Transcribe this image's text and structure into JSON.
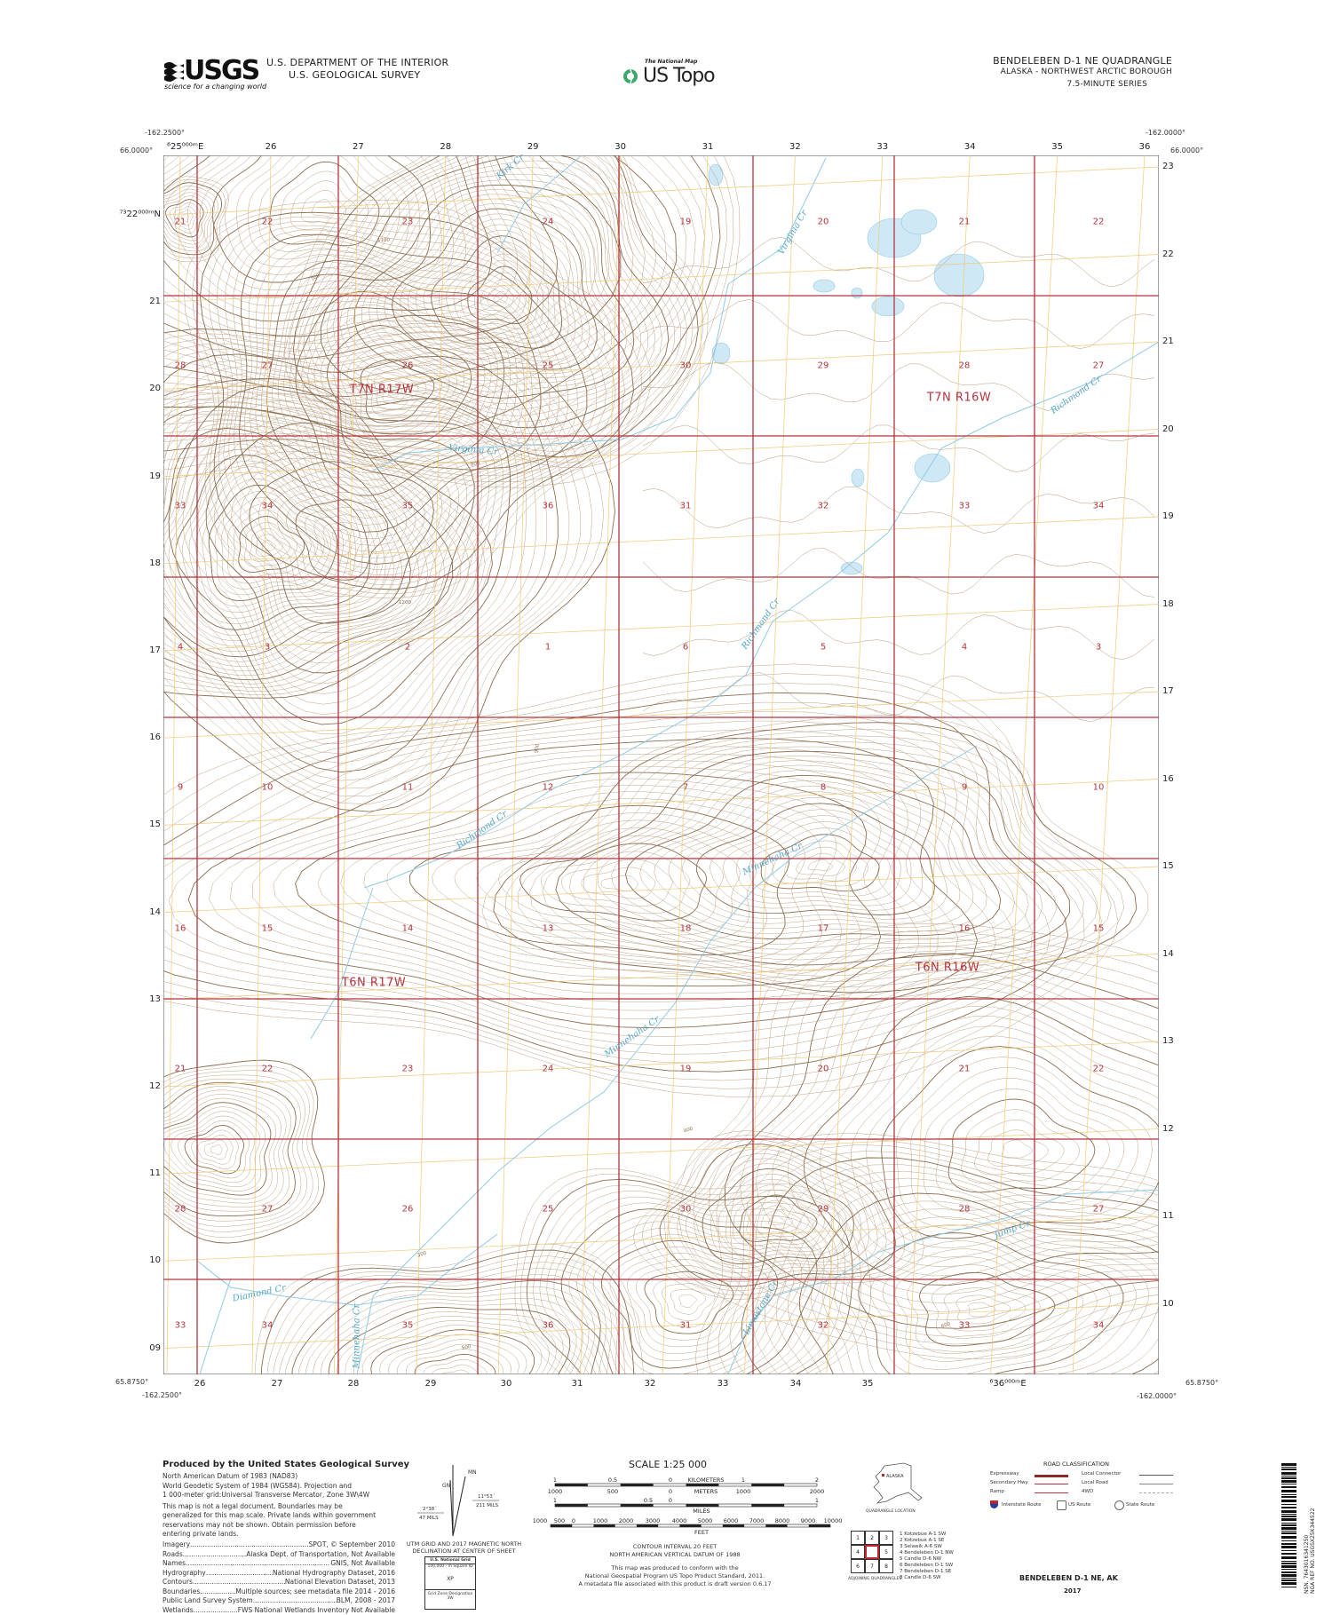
{
  "header": {
    "usgs_logo": "USGS",
    "usgs_tagline": "science for a changing world",
    "agency_line1": "U.S. DEPARTMENT OF THE INTERIOR",
    "agency_line2": "U.S. GEOLOGICAL SURVEY",
    "national_map": "The National Map",
    "us_topo": "US Topo",
    "quad_title": "BENDELEBEN D-1 NE QUADRANGLE",
    "state_line": "ALASKA - NORTHWEST ARCTIC BOROUGH",
    "series": "7.5-MINUTE SERIES"
  },
  "corners": {
    "nw_lon": "-162.2500°",
    "nw_lat": "66.0000°",
    "ne_lon": "-162.0000°",
    "ne_lat": "66.0000°",
    "sw_lon": "-162.2500°",
    "sw_lat": "65.8750°",
    "se_lon": "-162.0000°",
    "se_lat": "65.8750°"
  },
  "grid": {
    "easting_top": [
      "⁶25⁰⁰⁰ᵐE",
      "26",
      "27",
      "28",
      "29",
      "30",
      "31",
      "32",
      "33",
      "34",
      "35",
      "36"
    ],
    "easting_bottom": [
      "26",
      "27",
      "28",
      "29",
      "30",
      "31",
      "32",
      "33",
      "34",
      "35",
      "⁶36⁰⁰⁰ᵐE"
    ],
    "northing_left": [
      "⁷³22⁰⁰⁰ᵐN",
      "21",
      "20",
      "19",
      "18",
      "17",
      "16",
      "15",
      "14",
      "13",
      "12",
      "11",
      "10",
      "09"
    ],
    "northing_right": [
      "23",
      "22",
      "21",
      "20",
      "19",
      "18",
      "17",
      "16",
      "15",
      "14",
      "13",
      "12",
      "11",
      "10"
    ],
    "northing_bottom_inner": "⁷³09⁰⁰⁰ᵐN"
  },
  "sections": [
    [
      "21",
      "22",
      "23",
      "24",
      "19",
      "20",
      "21",
      "22"
    ],
    [
      "28",
      "27",
      "26",
      "25",
      "30",
      "29",
      "28",
      "27"
    ],
    [
      "33",
      "34",
      "35",
      "36",
      "31",
      "32",
      "33",
      "34"
    ],
    [
      "4",
      "3",
      "2",
      "1",
      "6",
      "5",
      "4",
      "3"
    ],
    [
      "9",
      "10",
      "11",
      "12",
      "7",
      "8",
      "9",
      "10"
    ],
    [
      "16",
      "15",
      "14",
      "13",
      "18",
      "17",
      "16",
      "15"
    ],
    [
      "21",
      "22",
      "23",
      "24",
      "19",
      "20",
      "21",
      "22"
    ],
    [
      "28",
      "27",
      "26",
      "25",
      "30",
      "29",
      "28",
      "27"
    ],
    [
      "33",
      "34",
      "35",
      "36",
      "31",
      "32",
      "33",
      "34"
    ]
  ],
  "townships": [
    "T7N R17W",
    "T7N R16W",
    "T6N R17W",
    "T6N R16W"
  ],
  "creeks": [
    "Kirk Cr",
    "Virginia Cr",
    "Virginia Cr",
    "Richmond Cr",
    "Richmond Cr",
    "Richmond Cr",
    "Minnehaha Cr",
    "Minnehaha Cr",
    "Minnehaha Cr",
    "Diamond Cr",
    "Limestone Cr",
    "Jump Cr"
  ],
  "contour_labels": [
    "1100",
    "1200",
    "700",
    "800",
    "900",
    "400",
    "500",
    "600",
    "300"
  ],
  "colors": {
    "section_line": "#b5343e",
    "utm_grid": "#f0c878",
    "contour": "#b89a7a",
    "index_contour": "#8d6e50",
    "water": "#8fcbe6",
    "lake": "#cfe8f5"
  },
  "footer": {
    "produced_by": "Produced by the United States Geological Survey",
    "datum_lines": [
      "North American Datum of 1983 (NAD83)",
      "World Geodetic System of 1984 (WGS84).  Projection and",
      "1 000-meter grid:Universal Transverse Mercator, Zone 3W\\4W"
    ],
    "disclaimer": [
      "This map is not a legal document. Boundaries may be",
      "generalized for this map scale. Private lands within government",
      "reservations may not be shown. Obtain permission before",
      "entering private lands."
    ],
    "credits": [
      {
        "item": "Imagery",
        "source": "SPOT, © September 2010"
      },
      {
        "item": "Roads",
        "source": "Alaska Dept. of Transportation, Not Available"
      },
      {
        "item": "Names",
        "source": "GNIS, Not Available"
      },
      {
        "item": "Hydrography",
        "source": "National Hydrography Dataset, 2016"
      },
      {
        "item": "Contours",
        "source": "National Elevation Dataset, 2013"
      },
      {
        "item": "Boundaries",
        "source": "Multiple sources; see metadata file 2014 - 2016"
      },
      {
        "item": "Public Land Survey System",
        "source": "BLM, 2008 - 2017"
      },
      {
        "item": "Wetlands",
        "source": "FWS National Wetlands Inventory Not Available"
      }
    ],
    "declination": {
      "mn": "MN",
      "gn": "GN",
      "left_angle": "2°38´",
      "left_mils": "47 MILS",
      "right_angle": "11°53´",
      "right_mils": "211 MILS",
      "caption1": "UTM GRID AND 2017 MAGNETIC NORTH",
      "caption2": "DECLINATION AT CENTER OF SHEET"
    },
    "national_grid": {
      "title": "U.S. National Grid",
      "subtitle": "100,000 - m Square ID",
      "square_id": "XP",
      "zone_label": "Grid Zone Designation",
      "zone": "3W"
    },
    "scale": {
      "title": "SCALE 1:25 000",
      "km_label": "KILOMETERS",
      "km_ticks": [
        "1",
        "0.5",
        "0",
        "1",
        "2"
      ],
      "m_label": "METERS",
      "m_ticks": [
        "1000",
        "500",
        "0",
        "1000",
        "2000"
      ],
      "mi_label": "MILES",
      "mi_ticks": [
        "1",
        "0.5",
        "0",
        "1"
      ],
      "ft_label": "FEET",
      "ft_ticks": [
        "1000",
        "500",
        "0",
        "1000",
        "2000",
        "3000",
        "4000",
        "5000",
        "6000",
        "7000",
        "8000",
        "9000",
        "10000"
      ]
    },
    "contour_interval": "CONTOUR INTERVAL 20 FEET",
    "vertical_datum": "NORTH AMERICAN VERTICAL DATUM OF 1988",
    "standard_lines": [
      "This map was produced to conform with the",
      "National Geospatial Program US Topo Product Standard, 2011.",
      "A metadata file associated with this product is draft version 0.6.17"
    ],
    "location_map": {
      "state": "ALASKA",
      "caption": "QUADRANGLE LOCATION"
    },
    "adjoining": {
      "caption": "ADJOINING QUADRANGLES",
      "cells": [
        "1",
        "2",
        "3",
        "4",
        "",
        "5",
        "6",
        "7",
        "8"
      ],
      "list": [
        "1 Kotzebue A-1 SW",
        "2 Kotzebue A-1 SE",
        "3 Selawik A-6 SW",
        "4 Bendeleben D-1 NW",
        "5 Candle D-6 NW",
        "6 Bendeleben D-1 SW",
        "7 Bendeleben D-1 SE",
        "8 Candle D-6 SW"
      ]
    },
    "road_classification": {
      "title": "ROAD CLASSIFICATION",
      "left": [
        "Expressway",
        "Secondary Hwy",
        "Ramp"
      ],
      "right": [
        "Local Connector",
        "Local Road",
        "4WD"
      ],
      "routes": [
        "Interstate Route",
        "US Route",
        "State Route"
      ]
    },
    "quad_name": "BENDELEBEN D-1 NE,  AK",
    "year": "2017",
    "barcode": {
      "nsn": "NSN. 7643016341250",
      "nga": "NGA REF NO. USGSX25K344522"
    }
  }
}
